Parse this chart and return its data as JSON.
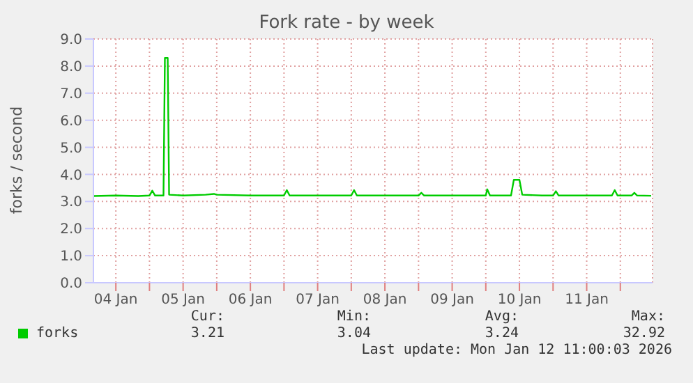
{
  "chart_data": {
    "type": "line",
    "title": "Fork rate - by week",
    "ylabel": "forks / second",
    "x": [
      "2026-01-04T04:00",
      "2026-01-04T12:00",
      "2026-01-04T20:00",
      "2026-01-05T00:00",
      "2026-01-05T01:00",
      "2026-01-05T02:00",
      "2026-01-05T05:00",
      "2026-01-05T05:30",
      "2026-01-05T06:30",
      "2026-01-05T07:00",
      "2026-01-05T12:00",
      "2026-01-05T20:00",
      "2026-01-05T23:00",
      "2026-01-06T00:00",
      "2026-01-06T12:00",
      "2026-01-07T00:00",
      "2026-01-07T01:00",
      "2026-01-07T02:00",
      "2026-01-07T12:00",
      "2026-01-08T00:00",
      "2026-01-08T01:00",
      "2026-01-08T02:00",
      "2026-01-08T12:00",
      "2026-01-09T00:00",
      "2026-01-09T01:00",
      "2026-01-09T02:00",
      "2026-01-09T12:00",
      "2026-01-10T00:00",
      "2026-01-10T00:30",
      "2026-01-10T01:30",
      "2026-01-10T09:00",
      "2026-01-10T10:00",
      "2026-01-10T12:00",
      "2026-01-10T13:00",
      "2026-01-10T20:00",
      "2026-01-11T00:00",
      "2026-01-11T01:00",
      "2026-01-11T02:00",
      "2026-01-11T12:00",
      "2026-01-11T21:00",
      "2026-01-11T22:00",
      "2026-01-11T23:00",
      "2026-01-12T04:00",
      "2026-01-12T05:00",
      "2026-01-12T06:00",
      "2026-01-12T11:00"
    ],
    "series": [
      {
        "name": "forks",
        "color": "#00cc00",
        "values": [
          3.2,
          3.22,
          3.2,
          3.22,
          3.4,
          3.22,
          3.22,
          8.3,
          8.3,
          3.25,
          3.22,
          3.25,
          3.28,
          3.25,
          3.22,
          3.22,
          3.42,
          3.22,
          3.22,
          3.22,
          3.42,
          3.22,
          3.22,
          3.22,
          3.32,
          3.22,
          3.22,
          3.22,
          3.45,
          3.22,
          3.22,
          3.8,
          3.8,
          3.25,
          3.22,
          3.22,
          3.38,
          3.22,
          3.22,
          3.22,
          3.42,
          3.22,
          3.22,
          3.32,
          3.22,
          3.21
        ]
      }
    ],
    "xlim": [
      "2026-01-04T04:00",
      "2026-01-12T11:30"
    ],
    "xticks": [
      {
        "value": "2026-01-04T12:00",
        "label": "04 Jan"
      },
      {
        "value": "2026-01-05T00:00",
        "label": null
      },
      {
        "value": "2026-01-05T12:00",
        "label": "05 Jan"
      },
      {
        "value": "2026-01-06T00:00",
        "label": null
      },
      {
        "value": "2026-01-06T12:00",
        "label": "06 Jan"
      },
      {
        "value": "2026-01-07T00:00",
        "label": null
      },
      {
        "value": "2026-01-07T12:00",
        "label": "07 Jan"
      },
      {
        "value": "2026-01-08T00:00",
        "label": null
      },
      {
        "value": "2026-01-08T12:00",
        "label": "08 Jan"
      },
      {
        "value": "2026-01-09T00:00",
        "label": null
      },
      {
        "value": "2026-01-09T12:00",
        "label": "09 Jan"
      },
      {
        "value": "2026-01-10T00:00",
        "label": null
      },
      {
        "value": "2026-01-10T12:00",
        "label": "10 Jan"
      },
      {
        "value": "2026-01-11T00:00",
        "label": null
      },
      {
        "value": "2026-01-11T12:00",
        "label": "11 Jan"
      },
      {
        "value": "2026-01-12T00:00",
        "label": null
      }
    ],
    "ylim": [
      0,
      9
    ],
    "yticks": [
      {
        "value": 0,
        "label": "0.0"
      },
      {
        "value": 1,
        "label": "1.0"
      },
      {
        "value": 2,
        "label": "2.0"
      },
      {
        "value": 3,
        "label": "3.0"
      },
      {
        "value": 4,
        "label": "4.0"
      },
      {
        "value": 5,
        "label": "5.0"
      },
      {
        "value": 6,
        "label": "6.0"
      },
      {
        "value": 7,
        "label": "7.0"
      },
      {
        "value": 8,
        "label": "8.0"
      },
      {
        "value": 9,
        "label": "9.0"
      }
    ],
    "grid": true,
    "legend": "bottom",
    "marker": "none",
    "line_style": "solid",
    "annotations": [
      "Cur:",
      "3.21",
      "Min:",
      "3.04",
      "Avg:",
      "3.24",
      "Max:",
      "32.92",
      "Last update: Mon Jan 12 11:00:03 2026"
    ]
  }
}
